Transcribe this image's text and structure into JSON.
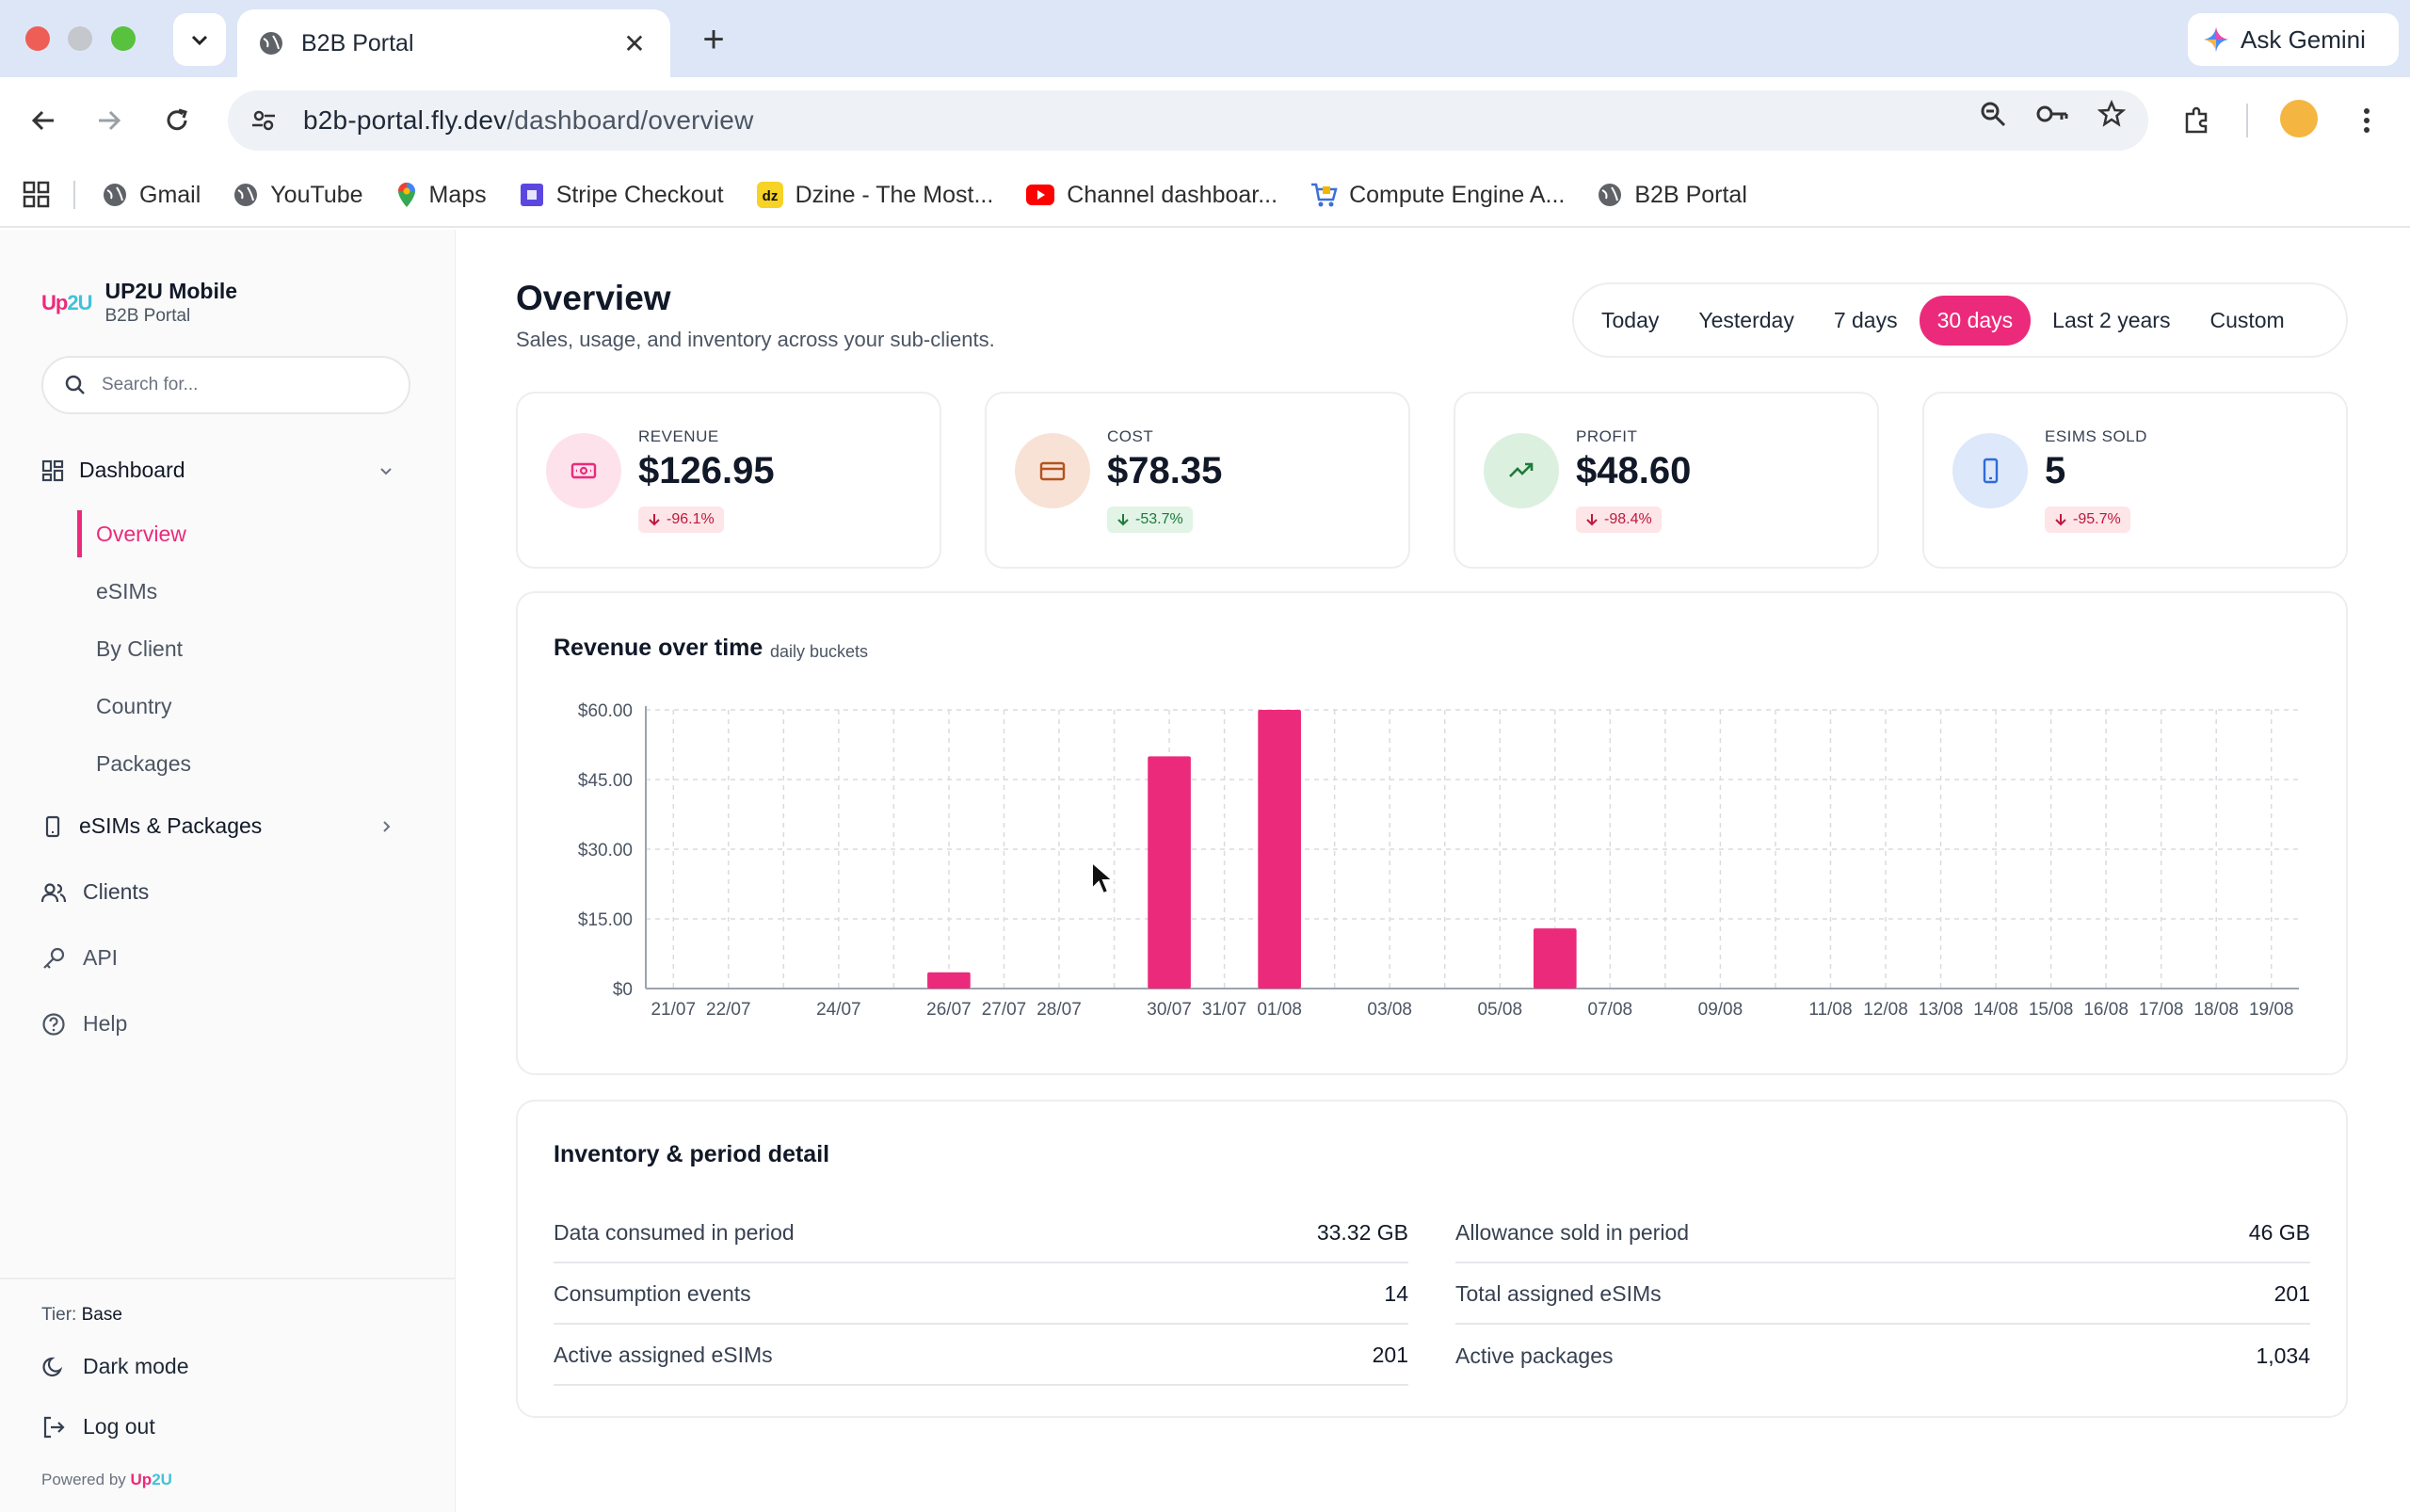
{
  "browser": {
    "tab_title": "B2B Portal",
    "url_host": "b2b-portal.fly.dev",
    "url_path": "/dashboard/overview",
    "gemini_label": "Ask Gemini",
    "bookmarks": [
      "Gmail",
      "YouTube",
      "Maps",
      "Stripe Checkout",
      "Dzine - The Most...",
      "Channel dashboar...",
      "Compute Engine A...",
      "B2B Portal"
    ]
  },
  "sidebar": {
    "brand_logo": "Up2U",
    "brand_name": "UP2U Mobile",
    "brand_sub": "B2B Portal",
    "search_placeholder": "Search for...",
    "dashboard_label": "Dashboard",
    "dashboard_items": [
      "Overview",
      "eSIMs",
      "By Client",
      "Country",
      "Packages"
    ],
    "esims_packages_label": "eSIMs & Packages",
    "clients_label": "Clients",
    "api_label": "API",
    "help_label": "Help",
    "tier_prefix": "Tier:",
    "tier_value": "Base",
    "dark_mode_label": "Dark mode",
    "logout_label": "Log out",
    "powered_prefix": "Powered by"
  },
  "header": {
    "title": "Overview",
    "subtitle": "Sales, usage, and inventory across your sub-clients."
  },
  "ranges": {
    "options": [
      "Today",
      "Yesterday",
      "7 days",
      "30 days",
      "Last 2 years",
      "Custom"
    ],
    "active": "30 days"
  },
  "kpis": {
    "revenue": {
      "label": "REVENUE",
      "value": "$126.95",
      "change": "-96.1%"
    },
    "cost": {
      "label": "COST",
      "value": "$78.35",
      "change": "-53.7%"
    },
    "profit": {
      "label": "PROFIT",
      "value": "$48.60",
      "change": "-98.4%"
    },
    "esims": {
      "label": "ESIMS SOLD",
      "value": "5",
      "change": "-95.7%"
    }
  },
  "colors": {
    "accent": "#ec2a7b",
    "teal": "#42c2d8",
    "badge_red_bg": "#fde5e8",
    "badge_green_bg": "#e1f4e6"
  },
  "chart_title": "Revenue over time",
  "chart_subtitle": "daily buckets",
  "chart_data": {
    "type": "bar",
    "title": "Revenue over time",
    "subtitle": "daily buckets",
    "xlabel": "",
    "ylabel": "",
    "ylim": [
      0,
      60
    ],
    "yticks": [
      "$0",
      "$15.00",
      "$30.00",
      "$45.00",
      "$60.00"
    ],
    "grid": true,
    "categories": [
      "21/07",
      "22/07",
      "23/07",
      "24/07",
      "25/07",
      "26/07",
      "27/07",
      "28/07",
      "29/07",
      "30/07",
      "31/07",
      "01/08",
      "02/08",
      "03/08",
      "04/08",
      "05/08",
      "06/08",
      "07/08",
      "08/08",
      "09/08",
      "10/08",
      "11/08",
      "12/08",
      "13/08",
      "14/08",
      "15/08",
      "16/08",
      "17/08",
      "18/08",
      "19/08"
    ],
    "tick_labels_shown": [
      "21/07",
      "22/07",
      "24/07",
      "26/07",
      "27/07",
      "28/07",
      "30/07",
      "31/07",
      "01/08",
      "03/08",
      "05/08",
      "07/08",
      "09/08",
      "11/08",
      "12/08",
      "13/08",
      "14/08",
      "15/08",
      "16/08",
      "17/08",
      "18/08",
      "19/08"
    ],
    "values": [
      0,
      0,
      0,
      0,
      0,
      3.5,
      0,
      0,
      0,
      50,
      0,
      60,
      0,
      0,
      0,
      0,
      12.95,
      0,
      0,
      0,
      0,
      0,
      0,
      0,
      0,
      0,
      0,
      0,
      0,
      0
    ]
  },
  "inventory": {
    "title": "Inventory & period detail",
    "left": [
      {
        "label": "Data consumed in period",
        "value": "33.32 GB"
      },
      {
        "label": "Consumption events",
        "value": "14"
      },
      {
        "label": "Active assigned eSIMs",
        "value": "201"
      }
    ],
    "right": [
      {
        "label": "Allowance sold in period",
        "value": "46 GB"
      },
      {
        "label": "Total assigned eSIMs",
        "value": "201"
      },
      {
        "label": "Active packages",
        "value": "1,034"
      }
    ]
  }
}
